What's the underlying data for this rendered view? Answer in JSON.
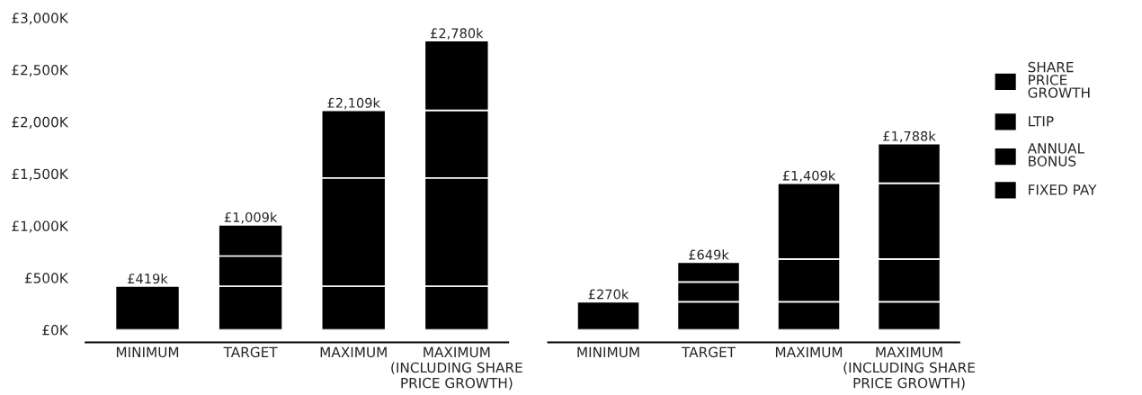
{
  "chart_data": [
    {
      "type": "bar",
      "stacked": true,
      "categories": [
        "MINIMUM",
        "TARGET",
        "MAXIMUM",
        "MAXIMUM\n(INCLUDING SHARE\nPRICE GROWTH)"
      ],
      "series": [
        {
          "name": "FIXED PAY",
          "color": "#000000",
          "values": [
            420,
            420,
            420,
            420
          ]
        },
        {
          "name": "ANNUAL\nBONUS",
          "color": "#000000",
          "values": [
            null,
            290,
            1040,
            1040
          ]
        },
        {
          "name": "LTIP",
          "color": "#000000",
          "values": [
            null,
            300,
            650,
            650
          ]
        },
        {
          "name": "SHARE\nPRICE\nGROWTH",
          "color": "#000000",
          "values": [
            null,
            null,
            null,
            670
          ]
        }
      ],
      "totals": [
        "£419k",
        "£1,009k",
        "£2,109k",
        "£2,780k"
      ],
      "ylim": [
        0,
        3000
      ],
      "yticks": [
        {
          "value": 0,
          "label": "£0K"
        },
        {
          "value": 500,
          "label": "£500K"
        },
        {
          "value": 1000,
          "label": "£1,000K"
        },
        {
          "value": 1500,
          "label": "£1,500K"
        },
        {
          "value": 2000,
          "label": "£2,000K"
        },
        {
          "value": 2500,
          "label": "£2,500K"
        },
        {
          "value": 3000,
          "label": "£3,000K"
        }
      ],
      "grid": false,
      "legend": "right"
    },
    {
      "type": "bar",
      "stacked": true,
      "categories": [
        "MINIMUM",
        "TARGET",
        "MAXIMUM",
        "MAXIMUM\n(INCLUDING SHARE\nPRICE GROWTH)"
      ],
      "series": [
        {
          "color": "#000000",
          "values": [
            270,
            270,
            270,
            270
          ]
        },
        {
          "color": "#000000",
          "values": [
            null,
            190,
            410,
            410
          ]
        },
        {
          "color": "#000000",
          "values": [
            null,
            190,
            730,
            730
          ]
        },
        {
          "color": "#000000",
          "values": [
            null,
            null,
            null,
            380
          ]
        }
      ],
      "totals": [
        "£270k",
        "£649k",
        "£1,409k",
        "£1,788k"
      ],
      "ylim": [
        0,
        3000
      ],
      "tick_labels": "x",
      "grid": false
    }
  ]
}
